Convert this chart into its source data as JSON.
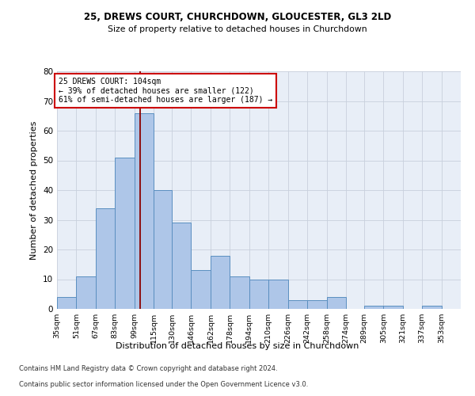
{
  "title1": "25, DREWS COURT, CHURCHDOWN, GLOUCESTER, GL3 2LD",
  "title2": "Size of property relative to detached houses in Churchdown",
  "xlabel": "Distribution of detached houses by size in Churchdown",
  "ylabel": "Number of detached properties",
  "bin_labels": [
    "35sqm",
    "51sqm",
    "67sqm",
    "83sqm",
    "99sqm",
    "115sqm",
    "130sqm",
    "146sqm",
    "162sqm",
    "178sqm",
    "194sqm",
    "210sqm",
    "226sqm",
    "242sqm",
    "258sqm",
    "274sqm",
    "289sqm",
    "305sqm",
    "321sqm",
    "337sqm",
    "353sqm"
  ],
  "bar_values": [
    4,
    11,
    34,
    51,
    66,
    40,
    29,
    13,
    18,
    11,
    10,
    10,
    3,
    3,
    4,
    0,
    1,
    1,
    0,
    1,
    0
  ],
  "bar_color": "#aec6e8",
  "bar_edge_color": "#5a8fc0",
  "vline_x": 104,
  "vline_color": "#8b0000",
  "annotation_line1": "25 DREWS COURT: 104sqm",
  "annotation_line2": "← 39% of detached houses are smaller (122)",
  "annotation_line3": "61% of semi-detached houses are larger (187) →",
  "annotation_box_color": "white",
  "annotation_box_edge_color": "#cc0000",
  "ylim": [
    0,
    80
  ],
  "yticks": [
    0,
    10,
    20,
    30,
    40,
    50,
    60,
    70,
    80
  ],
  "grid_color": "#c8d0dc",
  "bg_color": "#e8eef7",
  "footer1": "Contains HM Land Registry data © Crown copyright and database right 2024.",
  "footer2": "Contains public sector information licensed under the Open Government Licence v3.0.",
  "bin_edges": [
    35,
    51,
    67,
    83,
    99,
    115,
    130,
    146,
    162,
    178,
    194,
    210,
    226,
    242,
    258,
    274,
    289,
    305,
    321,
    337,
    353,
    369
  ]
}
